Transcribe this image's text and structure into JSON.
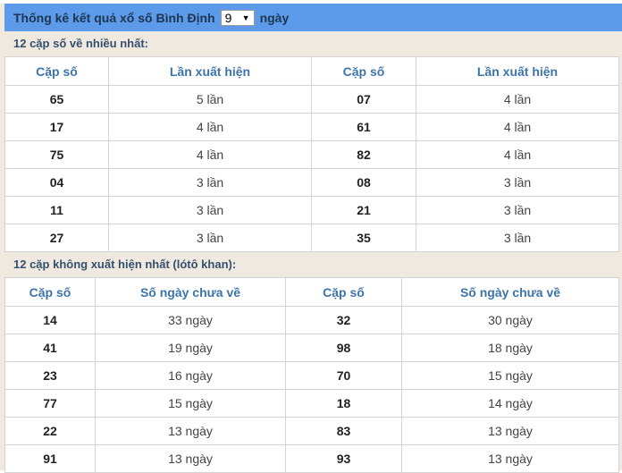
{
  "header": {
    "title": "Thống kê kết quả xổ số Bình Định",
    "days_value": "9",
    "days_suffix": "ngày",
    "select_icon": "triangle-down"
  },
  "most": {
    "heading": "12 cặp số về nhiều nhất:",
    "columns": [
      "Cặp số",
      "Lần xuất hiện",
      "Cặp số",
      "Lần xuất hiện"
    ],
    "rows": [
      [
        "65",
        "5 lần",
        "07",
        "4 lần"
      ],
      [
        "17",
        "4 lần",
        "61",
        "4 lần"
      ],
      [
        "75",
        "4 lần",
        "82",
        "4 lần"
      ],
      [
        "04",
        "3 lần",
        "08",
        "3 lần"
      ],
      [
        "11",
        "3 lần",
        "21",
        "3 lần"
      ],
      [
        "27",
        "3 lần",
        "35",
        "3 lần"
      ]
    ]
  },
  "absent": {
    "heading": "12 cặp không xuất hiện nhất (lótô khan):",
    "columns": [
      "Cặp số",
      "Số ngày chưa về",
      "Cặp số",
      "Số ngày chưa về"
    ],
    "rows": [
      [
        "14",
        "33 ngày",
        "32",
        "30 ngày"
      ],
      [
        "41",
        "19 ngày",
        "98",
        "18 ngày"
      ],
      [
        "23",
        "16 ngày",
        "70",
        "15 ngày"
      ],
      [
        "77",
        "15 ngày",
        "18",
        "14 ngày"
      ],
      [
        "22",
        "13 ngày",
        "83",
        "13 ngày"
      ],
      [
        "91",
        "13 ngày",
        "93",
        "13 ngày"
      ]
    ]
  }
}
